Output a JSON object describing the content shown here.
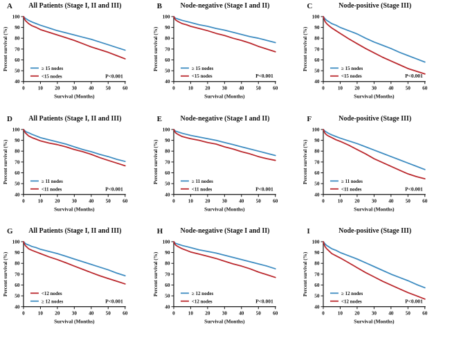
{
  "page": {
    "background": "#ffffff"
  },
  "colors": {
    "blue": "#3E8CC1",
    "red": "#BA282D",
    "axis": "#111111"
  },
  "chart_data": [
    {
      "type": "line",
      "panel": "A",
      "title": "All Patients (Stage I, II and III)",
      "xlabel": "Survival (Months)",
      "ylabel": "Percent survival (%)",
      "xlim": [
        0,
        60
      ],
      "ylim": [
        40,
        100
      ],
      "xticks": [
        0,
        10,
        20,
        30,
        40,
        50,
        60
      ],
      "yticks": [
        40,
        50,
        60,
        70,
        80,
        90,
        100
      ],
      "p_value": "P<0.001",
      "legend_position": "lower-left",
      "grid": false,
      "x": [
        0,
        1,
        2,
        3,
        5,
        7.5,
        10,
        15,
        20,
        25,
        30,
        35,
        40,
        45,
        50,
        55,
        60
      ],
      "series": [
        {
          "name": "≥ 15 nodes",
          "color": "blue",
          "values": [
            100,
            98.5,
            97.5,
            96.5,
            95,
            93.5,
            92,
            89.5,
            87,
            85,
            83,
            81,
            79,
            76.5,
            74,
            71.5,
            69
          ]
        },
        {
          "name": "<15 nodes",
          "color": "red",
          "values": [
            100,
            96.5,
            95,
            93.5,
            91.5,
            90,
            88,
            85.5,
            83,
            80.5,
            78,
            75,
            72,
            69.5,
            67,
            64,
            61
          ]
        }
      ],
      "legend_order": [
        0,
        1
      ]
    },
    {
      "type": "line",
      "panel": "B",
      "title": "Node-negative (Stage I and II)",
      "xlabel": "Survival (Months)",
      "ylabel": "Percent survival (%)",
      "xlim": [
        0,
        60
      ],
      "ylim": [
        40,
        100
      ],
      "xticks": [
        0,
        10,
        20,
        30,
        40,
        50,
        60
      ],
      "yticks": [
        40,
        50,
        60,
        70,
        80,
        90,
        100
      ],
      "p_value": "P<0.001",
      "legend_position": "lower-left",
      "grid": false,
      "x": [
        0,
        1,
        2,
        3,
        5,
        7.5,
        10,
        15,
        20,
        25,
        30,
        35,
        40,
        45,
        50,
        55,
        60
      ],
      "series": [
        {
          "name": "≥ 15 nodes",
          "color": "blue",
          "values": [
            100,
            98.5,
            98,
            97.5,
            96.5,
            95.5,
            94.5,
            92.5,
            91,
            89,
            87.5,
            85.5,
            83.5,
            81.5,
            80,
            78,
            76
          ]
        },
        {
          "name": "<15 nodes",
          "color": "red",
          "values": [
            100,
            97,
            96,
            95,
            93.5,
            92.5,
            91,
            89,
            87,
            84.5,
            82.5,
            80,
            78,
            75.5,
            72.5,
            70,
            67.5
          ]
        }
      ],
      "legend_order": [
        0,
        1
      ]
    },
    {
      "type": "line",
      "panel": "C",
      "title": "Node-positive (Stage III)",
      "xlabel": "Survival (Months)",
      "ylabel": "Percent survival (%)",
      "xlim": [
        0,
        60
      ],
      "ylim": [
        40,
        100
      ],
      "xticks": [
        0,
        10,
        20,
        30,
        40,
        50,
        60
      ],
      "yticks": [
        40,
        50,
        60,
        70,
        80,
        90,
        100
      ],
      "p_value": "P<0.001",
      "legend_position": "lower-left",
      "grid": false,
      "x": [
        0,
        1,
        2,
        3,
        5,
        7.5,
        10,
        15,
        20,
        25,
        30,
        35,
        40,
        45,
        50,
        55,
        60
      ],
      "series": [
        {
          "name": "≥ 15 nodes",
          "color": "blue",
          "values": [
            100,
            98,
            96.5,
            95.5,
            93.5,
            92,
            90,
            87,
            84,
            80,
            76.5,
            73.5,
            70.5,
            67,
            64,
            61,
            58
          ]
        },
        {
          "name": "<15 nodes",
          "color": "red",
          "values": [
            100,
            95.5,
            93.5,
            92,
            89.5,
            87,
            84.5,
            79.5,
            75,
            70.5,
            66.5,
            62.5,
            59,
            55.5,
            52,
            49.5,
            47
          ]
        }
      ],
      "legend_order": [
        0,
        1
      ]
    },
    {
      "type": "line",
      "panel": "D",
      "title": "All Patients (Stage I, II and III)",
      "xlabel": "Survival (Months)",
      "ylabel": "Percent survival (%)",
      "xlim": [
        0,
        60
      ],
      "ylim": [
        40,
        100
      ],
      "xticks": [
        0,
        10,
        20,
        30,
        40,
        50,
        60
      ],
      "yticks": [
        40,
        50,
        60,
        70,
        80,
        90,
        100
      ],
      "p_value": "P<0.001",
      "legend_position": "lower-left",
      "grid": false,
      "x": [
        0,
        1,
        2,
        3,
        5,
        7.5,
        10,
        15,
        20,
        25,
        30,
        35,
        40,
        45,
        50,
        55,
        60
      ],
      "series": [
        {
          "name": "≥ 11 nodes",
          "color": "blue",
          "values": [
            100,
            98.5,
            97.5,
            97,
            95.5,
            94,
            92.5,
            90.5,
            88.5,
            86.5,
            84,
            81.5,
            79.5,
            77,
            75,
            72.5,
            70.5
          ]
        },
        {
          "name": "<11 nodes",
          "color": "red",
          "values": [
            100,
            97,
            95.5,
            94,
            92.5,
            91,
            89.5,
            87.5,
            86,
            84,
            81.5,
            79.5,
            77,
            74,
            71.5,
            69,
            66.5
          ]
        }
      ],
      "legend_order": [
        0,
        1
      ]
    },
    {
      "type": "line",
      "panel": "E",
      "title": "Node-negative (Stage I and II)",
      "xlabel": "Survival (Months)",
      "ylabel": "Percent survival (%)",
      "xlim": [
        0,
        60
      ],
      "ylim": [
        40,
        100
      ],
      "xticks": [
        0,
        10,
        20,
        30,
        40,
        50,
        60
      ],
      "yticks": [
        40,
        50,
        60,
        70,
        80,
        90,
        100
      ],
      "p_value": "P<0.001",
      "legend_position": "lower-left",
      "grid": false,
      "x": [
        0,
        1,
        2,
        3,
        5,
        7.5,
        10,
        15,
        20,
        25,
        30,
        35,
        40,
        45,
        50,
        55,
        60
      ],
      "series": [
        {
          "name": "≥ 11 nodes",
          "color": "blue",
          "values": [
            100,
            98.5,
            98,
            97.5,
            96.5,
            95.5,
            94.5,
            93,
            91.5,
            90,
            88,
            86,
            84,
            82,
            80,
            78,
            76
          ]
        },
        {
          "name": "<11 nodes",
          "color": "red",
          "values": [
            100,
            97,
            96,
            95,
            93.5,
            92.5,
            91.5,
            90,
            88,
            86.5,
            84,
            82,
            79.5,
            77.5,
            75,
            73,
            71.5
          ]
        }
      ],
      "legend_order": [
        0,
        1
      ]
    },
    {
      "type": "line",
      "panel": "F",
      "title": "Node-positive (Stage III)",
      "xlabel": "Survival (Months)",
      "ylabel": "Percent survival (%)",
      "xlim": [
        0,
        60
      ],
      "ylim": [
        40,
        100
      ],
      "xticks": [
        0,
        10,
        20,
        30,
        40,
        50,
        60
      ],
      "yticks": [
        40,
        50,
        60,
        70,
        80,
        90,
        100
      ],
      "p_value": "P<0.001",
      "legend_position": "lower-left",
      "grid": false,
      "x": [
        0,
        1,
        2,
        3,
        5,
        7.5,
        10,
        15,
        20,
        25,
        30,
        35,
        40,
        45,
        50,
        55,
        60
      ],
      "series": [
        {
          "name": "≥ 11 nodes",
          "color": "blue",
          "values": [
            100,
            98.5,
            97.5,
            96.5,
            95,
            93.5,
            92,
            89.5,
            87,
            84,
            81,
            78,
            75,
            72,
            69,
            66,
            63
          ]
        },
        {
          "name": "<11 nodes",
          "color": "red",
          "values": [
            100,
            96.5,
            95,
            94,
            92.5,
            90.5,
            89,
            85.5,
            81.5,
            77.5,
            73,
            69.5,
            66,
            62.5,
            59,
            56.5,
            54.5
          ]
        }
      ],
      "legend_order": [
        0,
        1
      ]
    },
    {
      "type": "line",
      "panel": "G",
      "title": "All Patients (Stage I, II and III)",
      "xlabel": "Survival (Months)",
      "ylabel": "Percent survival (%)",
      "xlim": [
        0,
        60
      ],
      "ylim": [
        40,
        100
      ],
      "xticks": [
        0,
        10,
        20,
        30,
        40,
        50,
        60
      ],
      "yticks": [
        40,
        50,
        60,
        70,
        80,
        90,
        100
      ],
      "p_value": "P<0.001",
      "legend_position": "lower-left",
      "grid": false,
      "x": [
        0,
        1,
        2,
        3,
        5,
        7.5,
        10,
        15,
        20,
        25,
        30,
        35,
        40,
        45,
        50,
        55,
        60
      ],
      "series": [
        {
          "name": "≥ 12 nodes",
          "color": "blue",
          "values": [
            100,
            98.5,
            97.5,
            97,
            95.5,
            94.5,
            93,
            91,
            89,
            86.5,
            84,
            81.5,
            79,
            76.5,
            74,
            71,
            68.5
          ]
        },
        {
          "name": "<12 nodes",
          "color": "red",
          "values": [
            100,
            96.5,
            95,
            93.5,
            92,
            90.5,
            89,
            86,
            83.5,
            80.5,
            77.5,
            74.5,
            71.5,
            68.5,
            66,
            63.5,
            61
          ]
        }
      ],
      "legend_order": [
        1,
        0
      ]
    },
    {
      "type": "line",
      "panel": "H",
      "title": "Node-negative (Stage I and II)",
      "xlabel": "Survival (Months)",
      "ylabel": "Percent survival (%)",
      "xlim": [
        0,
        60
      ],
      "ylim": [
        40,
        100
      ],
      "xticks": [
        0,
        10,
        20,
        30,
        40,
        50,
        60
      ],
      "yticks": [
        40,
        50,
        60,
        70,
        80,
        90,
        100
      ],
      "p_value": "P<0.001",
      "legend_position": "lower-left",
      "grid": false,
      "x": [
        0,
        1,
        2,
        3,
        5,
        7.5,
        10,
        15,
        20,
        25,
        30,
        35,
        40,
        45,
        50,
        55,
        60
      ],
      "series": [
        {
          "name": "≥ 12 nodes",
          "color": "blue",
          "values": [
            100,
            98.5,
            98,
            97.5,
            96.5,
            95.5,
            94.5,
            92.5,
            91,
            89.5,
            87.5,
            85.5,
            83.5,
            81.5,
            79.5,
            77.5,
            75
          ]
        },
        {
          "name": "<12 nodes",
          "color": "red",
          "values": [
            100,
            97,
            96,
            95,
            93.5,
            92,
            90.5,
            88.5,
            86.5,
            84.5,
            82,
            79.5,
            77.5,
            75,
            72,
            69.5,
            67
          ]
        }
      ],
      "legend_order": [
        0,
        1
      ]
    },
    {
      "type": "line",
      "panel": "I",
      "title": "Node-positive (Stage III)",
      "xlabel": "Survival (Months)",
      "ylabel": "Percent survival (%)",
      "xlim": [
        0,
        60
      ],
      "ylim": [
        40,
        100
      ],
      "xticks": [
        0,
        10,
        20,
        30,
        40,
        50,
        60
      ],
      "yticks": [
        40,
        50,
        60,
        70,
        80,
        90,
        100
      ],
      "p_value": "P<0.001",
      "legend_position": "lower-left",
      "grid": false,
      "x": [
        0,
        1,
        2,
        3,
        5,
        7.5,
        10,
        15,
        20,
        25,
        30,
        35,
        40,
        45,
        50,
        55,
        60
      ],
      "series": [
        {
          "name": "≥ 12 nodes",
          "color": "blue",
          "values": [
            100,
            98,
            96.5,
            95.5,
            93.5,
            92,
            90,
            87,
            84,
            80.5,
            77,
            73.5,
            70,
            67,
            64,
            60.5,
            57.5
          ]
        },
        {
          "name": "<12 nodes",
          "color": "red",
          "values": [
            100,
            95.5,
            93.5,
            92,
            89,
            87,
            85,
            80.5,
            76,
            71.5,
            67.5,
            63.5,
            60,
            56.5,
            53,
            50,
            47
          ]
        }
      ],
      "legend_order": [
        0,
        1
      ]
    }
  ]
}
